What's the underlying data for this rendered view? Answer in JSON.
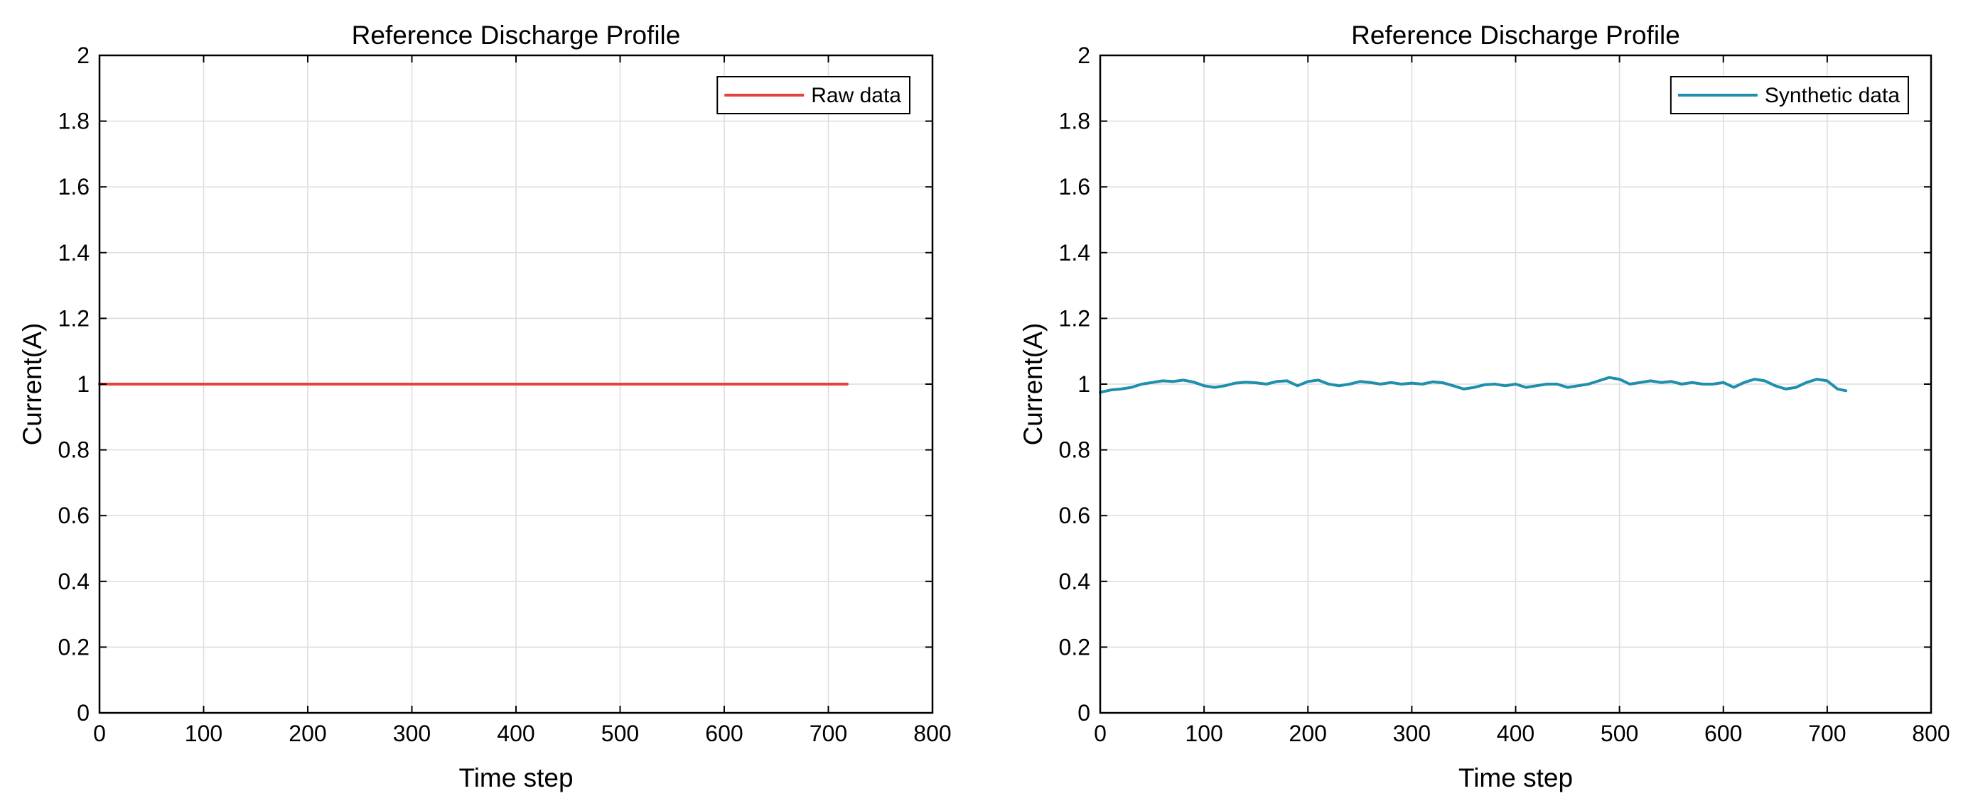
{
  "chart_data": [
    {
      "type": "line",
      "title": "Reference Discharge Profile",
      "xlabel": "Time step",
      "ylabel": "Current(A)",
      "xlim": [
        0,
        800
      ],
      "ylim": [
        0,
        2
      ],
      "xticks": [
        "0",
        "100",
        "200",
        "300",
        "400",
        "500",
        "600",
        "700",
        "800"
      ],
      "yticks": [
        "0",
        "0.2",
        "0.4",
        "0.6",
        "0.8",
        "1",
        "1.2",
        "1.4",
        "1.6",
        "1.8",
        "2"
      ],
      "grid": true,
      "legend_position": "top-right",
      "series": [
        {
          "name": "Raw data",
          "color": "#e8413c",
          "x": [
            0,
            100,
            200,
            300,
            400,
            500,
            600,
            718
          ],
          "y": [
            1.0,
            1.0,
            1.0,
            1.0,
            1.0,
            1.0,
            1.0,
            1.0
          ]
        }
      ]
    },
    {
      "type": "line",
      "title": "Reference Discharge Profile",
      "xlabel": "Time step",
      "ylabel": "Current(A)",
      "xlim": [
        0,
        800
      ],
      "ylim": [
        0,
        2
      ],
      "xticks": [
        "0",
        "100",
        "200",
        "300",
        "400",
        "500",
        "600",
        "700",
        "800"
      ],
      "yticks": [
        "0",
        "0.2",
        "0.4",
        "0.6",
        "0.8",
        "1",
        "1.2",
        "1.4",
        "1.6",
        "1.8",
        "2"
      ],
      "grid": true,
      "legend_position": "top-right",
      "series": [
        {
          "name": "Synthetic data",
          "color": "#1f8fae",
          "x": [
            0,
            10,
            20,
            30,
            40,
            50,
            60,
            70,
            80,
            90,
            100,
            110,
            120,
            130,
            140,
            150,
            160,
            170,
            180,
            190,
            200,
            210,
            220,
            230,
            240,
            250,
            260,
            270,
            280,
            290,
            300,
            310,
            320,
            330,
            340,
            350,
            360,
            370,
            380,
            390,
            400,
            410,
            420,
            430,
            440,
            450,
            460,
            470,
            480,
            490,
            500,
            510,
            520,
            530,
            540,
            550,
            560,
            570,
            580,
            590,
            600,
            610,
            620,
            630,
            640,
            650,
            660,
            670,
            680,
            690,
            700,
            710,
            718
          ],
          "y": [
            0.975,
            0.982,
            0.985,
            0.99,
            1.0,
            1.005,
            1.01,
            1.008,
            1.012,
            1.006,
            0.995,
            0.99,
            0.995,
            1.003,
            1.006,
            1.004,
            1.0,
            1.008,
            1.01,
            0.995,
            1.008,
            1.012,
            1.0,
            0.995,
            1.0,
            1.008,
            1.005,
            1.0,
            1.005,
            1.0,
            1.003,
            1.0,
            1.007,
            1.004,
            0.995,
            0.985,
            0.99,
            0.998,
            1.0,
            0.995,
            1.0,
            0.99,
            0.995,
            1.0,
            1.0,
            0.99,
            0.995,
            1.0,
            1.01,
            1.02,
            1.015,
            1.0,
            1.005,
            1.01,
            1.005,
            1.008,
            1.0,
            1.005,
            1.0,
            1.0,
            1.005,
            0.99,
            1.005,
            1.015,
            1.01,
            0.995,
            0.985,
            0.99,
            1.005,
            1.015,
            1.01,
            0.985,
            0.98
          ]
        }
      ]
    }
  ]
}
